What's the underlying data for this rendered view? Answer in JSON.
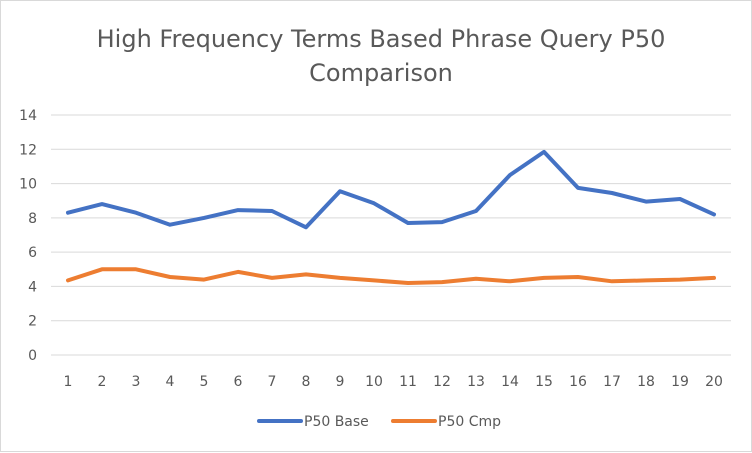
{
  "chart_data": {
    "type": "line",
    "title_lines": [
      "High Frequency Terms Based Phrase Query P50",
      "Comparison"
    ],
    "x": [
      "1",
      "2",
      "3",
      "4",
      "5",
      "6",
      "7",
      "8",
      "9",
      "10",
      "11",
      "12",
      "13",
      "14",
      "15",
      "16",
      "17",
      "18",
      "19",
      "20"
    ],
    "series": [
      {
        "name": "P50 Base",
        "color": "#4472c4",
        "values": [
          8.3,
          8.8,
          8.3,
          7.6,
          8.0,
          8.45,
          8.4,
          7.45,
          9.55,
          8.85,
          7.7,
          7.75,
          8.4,
          10.5,
          11.85,
          9.75,
          9.45,
          8.95,
          9.1,
          8.2
        ]
      },
      {
        "name": "P50 Cmp",
        "color": "#ed7d31",
        "values": [
          4.35,
          5.0,
          5.0,
          4.55,
          4.4,
          4.85,
          4.5,
          4.7,
          4.5,
          4.35,
          4.2,
          4.25,
          4.45,
          4.3,
          4.5,
          4.55,
          4.3,
          4.35,
          4.4,
          4.5
        ]
      }
    ],
    "y_ticks": [
      0,
      2,
      4,
      6,
      8,
      10,
      12,
      14
    ],
    "ylim": [
      0,
      14
    ],
    "grid": true,
    "legend_position": "bottom"
  }
}
